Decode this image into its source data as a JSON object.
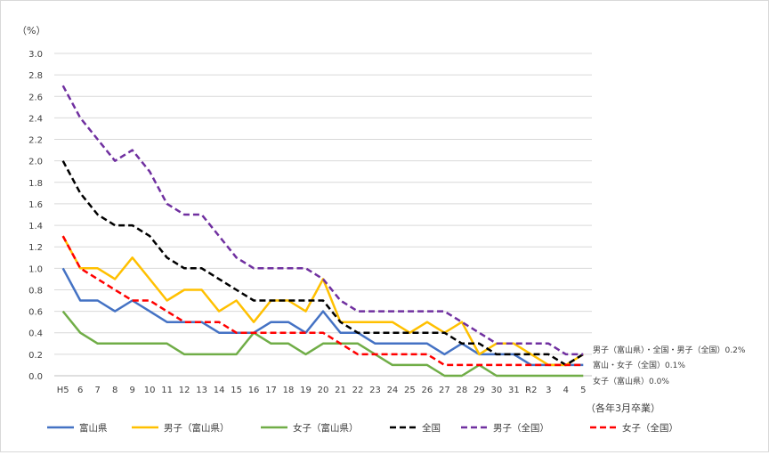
{
  "chart_data": {
    "type": "line",
    "title": "",
    "y_unit_label": "（%）",
    "x_unit_label": "（各年3月卒業）",
    "ylim": [
      0,
      3.0
    ],
    "y_ticks": [
      "0.0",
      "0.2",
      "0.4",
      "0.6",
      "0.8",
      "1.0",
      "1.2",
      "1.4",
      "1.6",
      "1.8",
      "2.0",
      "2.2",
      "2.4",
      "2.6",
      "2.8",
      "3.0"
    ],
    "grid": true,
    "legend_position": "bottom",
    "categories": [
      "H5",
      "6",
      "7",
      "8",
      "9",
      "10",
      "11",
      "12",
      "13",
      "14",
      "15",
      "16",
      "17",
      "18",
      "19",
      "20",
      "21",
      "22",
      "23",
      "24",
      "25",
      "26",
      "27",
      "28",
      "29",
      "30",
      "31",
      "R2",
      "3",
      "4",
      "5"
    ],
    "series": [
      {
        "name": "富山県",
        "color": "#4472c4",
        "dash": "solid",
        "values": [
          1.0,
          0.7,
          0.7,
          0.6,
          0.7,
          0.6,
          0.5,
          0.5,
          0.5,
          0.4,
          0.4,
          0.4,
          0.5,
          0.5,
          0.4,
          0.6,
          0.4,
          0.4,
          0.3,
          0.3,
          0.3,
          0.3,
          0.2,
          0.3,
          0.2,
          0.2,
          0.2,
          0.1,
          0.1,
          0.1,
          0.1
        ]
      },
      {
        "name": "男子（富山県）",
        "color": "#ffc000",
        "dash": "solid",
        "values": [
          1.3,
          1.0,
          1.0,
          0.9,
          1.1,
          0.9,
          0.7,
          0.8,
          0.8,
          0.6,
          0.7,
          0.5,
          0.7,
          0.7,
          0.6,
          0.9,
          0.5,
          0.5,
          0.5,
          0.5,
          0.4,
          0.5,
          0.4,
          0.5,
          0.2,
          0.3,
          0.3,
          0.2,
          0.1,
          0.1,
          0.2
        ]
      },
      {
        "name": "女子（富山県）",
        "color": "#70ad47",
        "dash": "solid",
        "values": [
          0.6,
          0.4,
          0.3,
          0.3,
          0.3,
          0.3,
          0.3,
          0.2,
          0.2,
          0.2,
          0.2,
          0.4,
          0.3,
          0.3,
          0.2,
          0.3,
          0.3,
          0.3,
          0.2,
          0.1,
          0.1,
          0.1,
          0.0,
          0.0,
          0.1,
          0.0,
          0.0,
          0.0,
          0.0,
          0.0,
          0.0
        ]
      },
      {
        "name": "全国",
        "color": "#000000",
        "dash": "dashed",
        "values": [
          2.0,
          1.7,
          1.5,
          1.4,
          1.4,
          1.3,
          1.1,
          1.0,
          1.0,
          0.9,
          0.8,
          0.7,
          0.7,
          0.7,
          0.7,
          0.7,
          0.5,
          0.4,
          0.4,
          0.4,
          0.4,
          0.4,
          0.4,
          0.3,
          0.3,
          0.2,
          0.2,
          0.2,
          0.2,
          0.1,
          0.2
        ]
      },
      {
        "name": "男子（全国）",
        "color": "#7030a0",
        "dash": "dashed",
        "values": [
          2.7,
          2.4,
          2.2,
          2.0,
          2.1,
          1.9,
          1.6,
          1.5,
          1.5,
          1.3,
          1.1,
          1.0,
          1.0,
          1.0,
          1.0,
          0.9,
          0.7,
          0.6,
          0.6,
          0.6,
          0.6,
          0.6,
          0.6,
          0.5,
          0.4,
          0.3,
          0.3,
          0.3,
          0.3,
          0.2,
          0.2
        ]
      },
      {
        "name": "女子（全国）",
        "color": "#ff0000",
        "dash": "dashed",
        "values": [
          1.3,
          1.0,
          0.9,
          0.8,
          0.7,
          0.7,
          0.6,
          0.5,
          0.5,
          0.5,
          0.4,
          0.4,
          0.4,
          0.4,
          0.4,
          0.4,
          0.3,
          0.2,
          0.2,
          0.2,
          0.2,
          0.2,
          0.1,
          0.1,
          0.1,
          0.1,
          0.1,
          0.1,
          0.1,
          0.1,
          0.1
        ]
      }
    ],
    "annotations": [
      {
        "text": "男子（富山県）・全国・男子（全国）0.2%",
        "value": 0.2
      },
      {
        "text": "富山・女子（全国）0.1%",
        "value": 0.1
      },
      {
        "text": "女子（富山県）0.0%",
        "value": 0.0
      }
    ]
  }
}
